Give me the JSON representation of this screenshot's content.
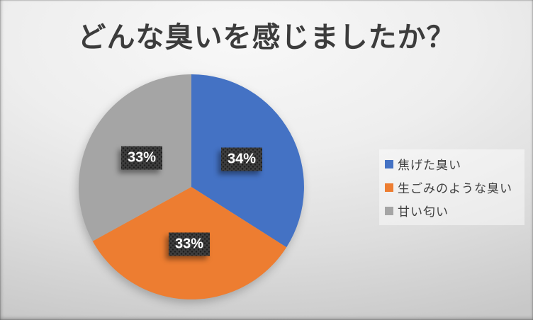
{
  "chart_data": {
    "type": "pie",
    "title": "どんな臭いを感じましたか？",
    "categories": [
      "焦げた臭い",
      "生ごみのような臭い",
      "甘い匂い"
    ],
    "values": [
      34,
      33,
      33
    ],
    "data_labels": [
      "34%",
      "33%",
      "33%"
    ],
    "colors": [
      "#4472C4",
      "#ED7D31",
      "#A5A5A5"
    ],
    "legend_position": "right",
    "start_angle_deg": 0,
    "direction": "clockwise",
    "label_text_color": "#FFFFFF",
    "label_box_color": "#3D3D3D",
    "title_color": "#3C3C3C"
  }
}
